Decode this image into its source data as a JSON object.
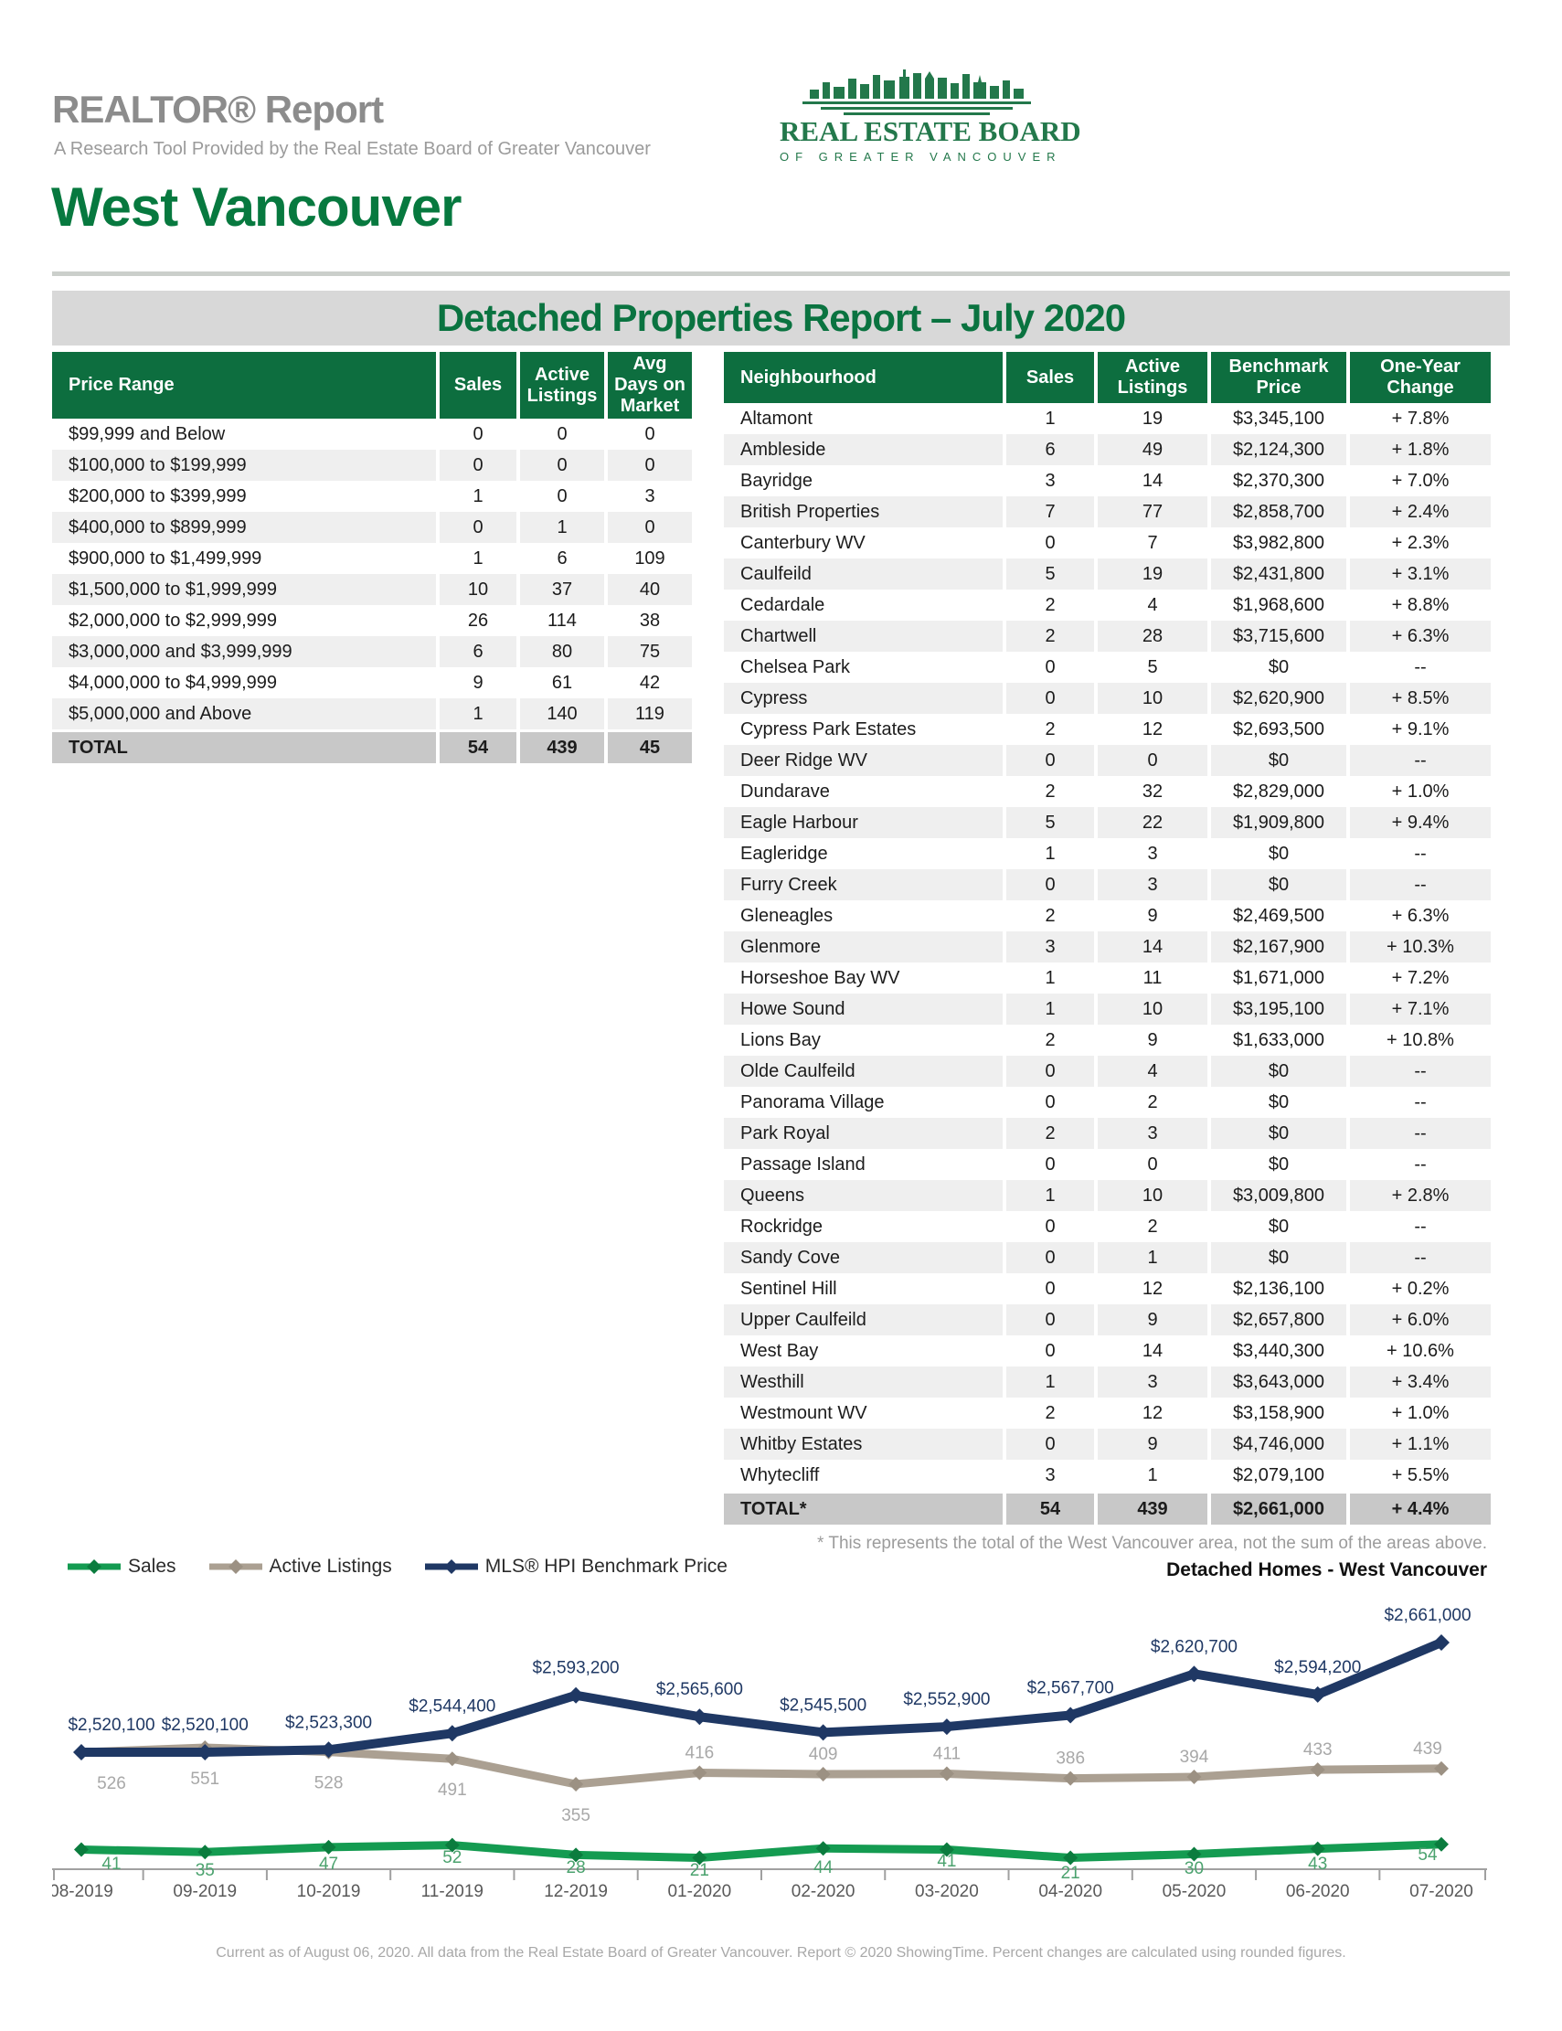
{
  "page": {
    "report_title": "REALTOR® Report",
    "report_subtitle": "A Research Tool Provided by the Real Estate Board of Greater Vancouver",
    "area_title": "West Vancouver",
    "banner_title": "Detached Properties Report – July 2020",
    "footnote": "* This represents the total of the West Vancouver area, not the sum of the areas above.",
    "footer": "Current as of August 06, 2020. All data from the Real Estate Board of Greater Vancouver. Report © 2020 ShowingTime. Percent changes are calculated using rounded figures."
  },
  "logo": {
    "line1": "REAL ESTATE BOARD",
    "line2": "OF GREATER VANCOUVER"
  },
  "colors": {
    "brand_green": "#07793f",
    "table_header_green": "#0d6e3f",
    "banner_gray": "#d8d8d8",
    "row_alt_gray": "#efefef",
    "total_row_gray": "#c8c8c8"
  },
  "price_table": {
    "headers": [
      "Price Range",
      "Sales",
      "Active Listings",
      "Avg Days on Market"
    ],
    "rows": [
      [
        "$99,999 and Below",
        "0",
        "0",
        "0"
      ],
      [
        "$100,000 to $199,999",
        "0",
        "0",
        "0"
      ],
      [
        "$200,000 to $399,999",
        "1",
        "0",
        "3"
      ],
      [
        "$400,000 to $899,999",
        "0",
        "1",
        "0"
      ],
      [
        "$900,000 to $1,499,999",
        "1",
        "6",
        "109"
      ],
      [
        "$1,500,000 to $1,999,999",
        "10",
        "37",
        "40"
      ],
      [
        "$2,000,000 to $2,999,999",
        "26",
        "114",
        "38"
      ],
      [
        "$3,000,000 and $3,999,999",
        "6",
        "80",
        "75"
      ],
      [
        "$4,000,000 to $4,999,999",
        "9",
        "61",
        "42"
      ],
      [
        "$5,000,000 and Above",
        "1",
        "140",
        "119"
      ]
    ],
    "total": [
      "TOTAL",
      "54",
      "439",
      "45"
    ]
  },
  "neighbourhood_table": {
    "headers": [
      "Neighbourhood",
      "Sales",
      "Active Listings",
      "Benchmark Price",
      "One-Year Change"
    ],
    "rows": [
      [
        "Altamont",
        "1",
        "19",
        "$3,345,100",
        "+ 7.8%"
      ],
      [
        "Ambleside",
        "6",
        "49",
        "$2,124,300",
        "+ 1.8%"
      ],
      [
        "Bayridge",
        "3",
        "14",
        "$2,370,300",
        "+ 7.0%"
      ],
      [
        "British Properties",
        "7",
        "77",
        "$2,858,700",
        "+ 2.4%"
      ],
      [
        "Canterbury WV",
        "0",
        "7",
        "$3,982,800",
        "+ 2.3%"
      ],
      [
        "Caulfeild",
        "5",
        "19",
        "$2,431,800",
        "+ 3.1%"
      ],
      [
        "Cedardale",
        "2",
        "4",
        "$1,968,600",
        "+ 8.8%"
      ],
      [
        "Chartwell",
        "2",
        "28",
        "$3,715,600",
        "+ 6.3%"
      ],
      [
        "Chelsea Park",
        "0",
        "5",
        "$0",
        "--"
      ],
      [
        "Cypress",
        "0",
        "10",
        "$2,620,900",
        "+ 8.5%"
      ],
      [
        "Cypress Park Estates",
        "2",
        "12",
        "$2,693,500",
        "+ 9.1%"
      ],
      [
        "Deer Ridge WV",
        "0",
        "0",
        "$0",
        "--"
      ],
      [
        "Dundarave",
        "2",
        "32",
        "$2,829,000",
        "+ 1.0%"
      ],
      [
        "Eagle Harbour",
        "5",
        "22",
        "$1,909,800",
        "+ 9.4%"
      ],
      [
        "Eagleridge",
        "1",
        "3",
        "$0",
        "--"
      ],
      [
        "Furry Creek",
        "0",
        "3",
        "$0",
        "--"
      ],
      [
        "Gleneagles",
        "2",
        "9",
        "$2,469,500",
        "+ 6.3%"
      ],
      [
        "Glenmore",
        "3",
        "14",
        "$2,167,900",
        "+ 10.3%"
      ],
      [
        "Horseshoe Bay WV",
        "1",
        "11",
        "$1,671,000",
        "+ 7.2%"
      ],
      [
        "Howe Sound",
        "1",
        "10",
        "$3,195,100",
        "+ 7.1%"
      ],
      [
        "Lions Bay",
        "2",
        "9",
        "$1,633,000",
        "+ 10.8%"
      ],
      [
        "Olde Caulfeild",
        "0",
        "4",
        "$0",
        "--"
      ],
      [
        "Panorama Village",
        "0",
        "2",
        "$0",
        "--"
      ],
      [
        "Park Royal",
        "2",
        "3",
        "$0",
        "--"
      ],
      [
        "Passage Island",
        "0",
        "0",
        "$0",
        "--"
      ],
      [
        "Queens",
        "1",
        "10",
        "$3,009,800",
        "+ 2.8%"
      ],
      [
        "Rockridge",
        "0",
        "2",
        "$0",
        "--"
      ],
      [
        "Sandy Cove",
        "0",
        "1",
        "$0",
        "--"
      ],
      [
        "Sentinel Hill",
        "0",
        "12",
        "$2,136,100",
        "+ 0.2%"
      ],
      [
        "Upper Caulfeild",
        "0",
        "9",
        "$2,657,800",
        "+ 6.0%"
      ],
      [
        "West Bay",
        "0",
        "14",
        "$3,440,300",
        "+ 10.6%"
      ],
      [
        "Westhill",
        "1",
        "3",
        "$3,643,000",
        "+ 3.4%"
      ],
      [
        "Westmount WV",
        "2",
        "12",
        "$3,158,900",
        "+ 1.0%"
      ],
      [
        "Whitby Estates",
        "0",
        "9",
        "$4,746,000",
        "+ 1.1%"
      ],
      [
        "Whytecliff",
        "3",
        "1",
        "$2,079,100",
        "+ 5.5%"
      ]
    ],
    "total": [
      "TOTAL*",
      "54",
      "439",
      "$2,661,000",
      "+ 4.4%"
    ]
  },
  "chart_data": {
    "type": "line",
    "title": "Detached Homes - West Vancouver",
    "legend_position": "top-left",
    "grid": false,
    "categories": [
      "08-2019",
      "09-2019",
      "10-2019",
      "11-2019",
      "12-2019",
      "01-2020",
      "02-2020",
      "03-2020",
      "04-2020",
      "05-2020",
      "06-2020",
      "07-2020"
    ],
    "series": [
      {
        "name": "Sales",
        "color": "#149b51",
        "marker_color": "#0b7c3e",
        "label_color": "#4ba26e",
        "values": [
          41,
          35,
          47,
          52,
          28,
          21,
          44,
          41,
          21,
          30,
          43,
          54
        ]
      },
      {
        "name": "Active Listings",
        "color": "#aba092",
        "marker_color": "#9c9183",
        "label_color": "#a8a8a8",
        "values": [
          526,
          551,
          528,
          491,
          355,
          416,
          409,
          411,
          386,
          394,
          433,
          439
        ]
      },
      {
        "name": "MLS® HPI Benchmark Price",
        "color": "#1f3864",
        "marker_color": "#1f3864",
        "label_color": "#1f3864",
        "values": [
          2520100,
          2520100,
          2523300,
          2544400,
          2593200,
          2565600,
          2545500,
          2552900,
          2567700,
          2620700,
          2594200,
          2661000
        ],
        "labels": [
          "$2,520,100",
          "$2,520,100",
          "$2,523,300",
          "$2,544,400",
          "$2,593,200",
          "$2,565,600",
          "$2,545,500",
          "$2,552,900",
          "$2,567,700",
          "$2,620,700",
          "$2,594,200",
          "$2,661,000"
        ]
      }
    ]
  }
}
